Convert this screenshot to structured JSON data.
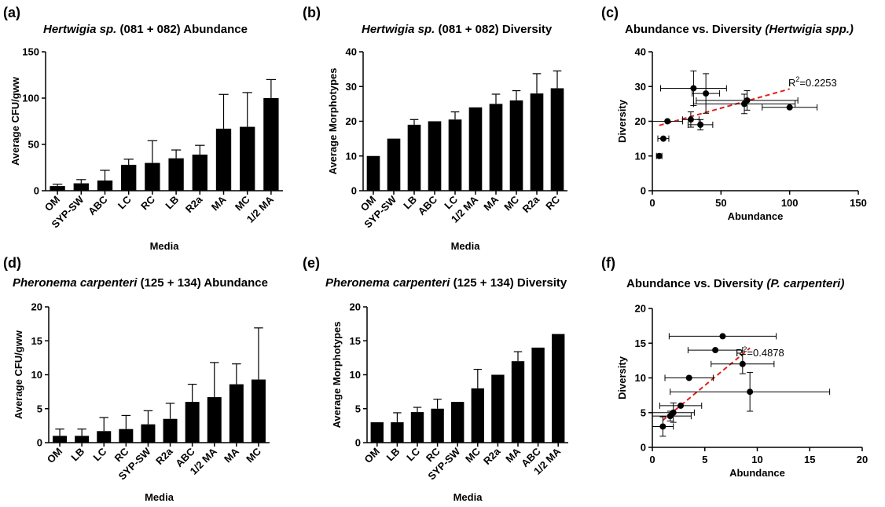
{
  "chart_data": [
    {
      "id": "a",
      "letter": "(a)",
      "type": "bar",
      "title_italic": "Hertwigia sp.",
      "title_plain": " (081 + 082) Abundance",
      "xlabel": "Media",
      "ylabel": "Average CFU/gww",
      "ylim": [
        0,
        150
      ],
      "yticks": [
        0,
        50,
        100,
        150
      ],
      "categories": [
        "OM",
        "SYP-SW",
        "ABC",
        "LC",
        "RC",
        "LB",
        "R2a",
        "MA",
        "MC",
        "1/2 MA"
      ],
      "values": [
        5,
        8,
        11,
        28,
        30,
        35,
        39,
        67,
        69,
        100
      ],
      "errors": [
        2,
        4,
        11,
        6,
        24,
        9,
        10,
        37,
        37,
        20
      ]
    },
    {
      "id": "b",
      "letter": "(b)",
      "type": "bar",
      "title_italic": "Hertwigia sp.",
      "title_plain": " (081 + 082) Diversity",
      "xlabel": "Media",
      "ylabel": "Average Morphotypes",
      "ylim": [
        0,
        40
      ],
      "yticks": [
        0,
        10,
        20,
        30,
        40
      ],
      "categories": [
        "OM",
        "SYP-SW",
        "LB",
        "ABC",
        "LC",
        "1/2 MA",
        "MA",
        "MC",
        "R2a",
        "RC"
      ],
      "values": [
        10,
        15,
        19,
        20,
        20.5,
        24,
        25,
        26,
        28,
        29.5
      ],
      "errors": [
        0,
        0,
        1.5,
        0,
        2.2,
        0,
        2.8,
        2.8,
        5.7,
        5
      ]
    },
    {
      "id": "c",
      "letter": "(c)",
      "type": "scatter",
      "title_plain": "Abundance vs. Diversity ",
      "title_italic_suffix": "(Hertwigia spp.)",
      "xlabel": "Abundance",
      "ylabel": "Diversity",
      "xlim": [
        0,
        150
      ],
      "xticks": [
        0,
        50,
        100,
        150
      ],
      "ylim": [
        0,
        40
      ],
      "yticks": [
        0,
        10,
        20,
        30,
        40
      ],
      "points": [
        {
          "x": 5,
          "y": 10,
          "xerr": 2,
          "yerr": 0
        },
        {
          "x": 8,
          "y": 15,
          "xerr": 4,
          "yerr": 0
        },
        {
          "x": 11,
          "y": 20,
          "xerr": 11,
          "yerr": 0
        },
        {
          "x": 28,
          "y": 20.5,
          "xerr": 6,
          "yerr": 2.2
        },
        {
          "x": 30,
          "y": 29.5,
          "xerr": 24,
          "yerr": 5
        },
        {
          "x": 35,
          "y": 19,
          "xerr": 9,
          "yerr": 1.5
        },
        {
          "x": 39,
          "y": 28,
          "xerr": 10,
          "yerr": 5.7
        },
        {
          "x": 67,
          "y": 25,
          "xerr": 37,
          "yerr": 2.8
        },
        {
          "x": 69,
          "y": 26,
          "xerr": 37,
          "yerr": 2.8
        },
        {
          "x": 100,
          "y": 24,
          "xerr": 20,
          "yerr": 0
        }
      ],
      "trendline": {
        "x": [
          5,
          100
        ],
        "y": [
          18.8,
          29.3
        ]
      },
      "r2_label": "R",
      "r2_exp": "2",
      "r2_value": "=0.2253"
    },
    {
      "id": "d",
      "letter": "(d)",
      "type": "bar",
      "title_italic": "Pheronema carpenteri",
      "title_plain": " (125 + 134) Abundance",
      "xlabel": "Media",
      "ylabel": "Average CFU/gww",
      "ylim": [
        0,
        20
      ],
      "yticks": [
        0,
        5,
        10,
        15,
        20
      ],
      "categories": [
        "OM",
        "LB",
        "LC",
        "RC",
        "SYP-SW",
        "R2a",
        "ABC",
        "1/2 MA",
        "MA",
        "MC"
      ],
      "values": [
        1,
        1,
        1.7,
        2,
        2.7,
        3.5,
        6,
        6.7,
        8.6,
        9.3
      ],
      "errors": [
        1,
        1,
        2,
        2,
        2,
        2.3,
        2.6,
        5.1,
        3,
        7.6
      ]
    },
    {
      "id": "e",
      "letter": "(e)",
      "type": "bar",
      "title_italic": "Pheronema carpenteri",
      "title_plain": " (125 + 134) Diversity",
      "xlabel": "Media",
      "ylabel": "Average Morphotypes",
      "ylim": [
        0,
        20
      ],
      "yticks": [
        0,
        5,
        10,
        15,
        20
      ],
      "categories": [
        "OM",
        "LB",
        "LC",
        "RC",
        "SYP-SW",
        "MC",
        "R2a",
        "MA",
        "ABC",
        "1/2 MA"
      ],
      "values": [
        3,
        3,
        4.5,
        5,
        6,
        8,
        10,
        12,
        14,
        16
      ],
      "errors": [
        0,
        1.4,
        0.7,
        1.4,
        0,
        2.8,
        0,
        1.4,
        0,
        0
      ]
    },
    {
      "id": "f",
      "letter": "(f)",
      "type": "scatter",
      "title_plain": "Abundance vs. Diversity ",
      "title_italic_suffix": "(P. carpenteri)",
      "xlabel": "Abundance",
      "ylabel": "Diversity",
      "xlim": [
        0,
        20
      ],
      "xticks": [
        0,
        5,
        10,
        15,
        20
      ],
      "ylim": [
        0,
        20
      ],
      "yticks": [
        0,
        5,
        10,
        15,
        20
      ],
      "points": [
        {
          "x": 1,
          "y": 3,
          "xerr": 1,
          "yerr": 1.4
        },
        {
          "x": 1.7,
          "y": 4.5,
          "xerr": 2,
          "yerr": 0.7
        },
        {
          "x": 2,
          "y": 5,
          "xerr": 2,
          "yerr": 1.4
        },
        {
          "x": 2.7,
          "y": 6,
          "xerr": 2,
          "yerr": 0
        },
        {
          "x": 3.5,
          "y": 10,
          "xerr": 2.3,
          "yerr": 0
        },
        {
          "x": 6,
          "y": 14,
          "xerr": 2.6,
          "yerr": 0
        },
        {
          "x": 6.7,
          "y": 16,
          "xerr": 5.1,
          "yerr": 0
        },
        {
          "x": 8.6,
          "y": 12,
          "xerr": 3,
          "yerr": 1.4
        },
        {
          "x": 9.3,
          "y": 8,
          "xerr": 7.6,
          "yerr": 2.8
        }
      ],
      "trendline": {
        "x": [
          1,
          9.3
        ],
        "y": [
          3.9,
          14.3
        ]
      },
      "r2_label": "R",
      "r2_exp": "2",
      "r2_value": "=0.4878"
    }
  ],
  "style": {
    "bar_color": "#000000",
    "trend_color": "#e0201b",
    "axis_color": "#000000"
  }
}
